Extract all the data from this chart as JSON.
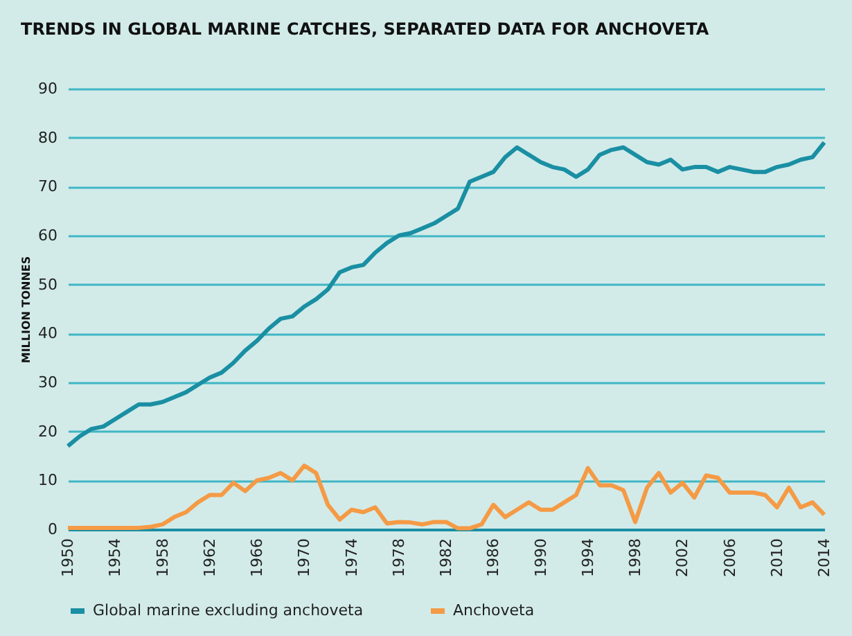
{
  "chart_data": {
    "type": "line",
    "title": "TRENDS IN GLOBAL MARINE CATCHES, SEPARATED DATA FOR ANCHOVETA",
    "ylabel": "MILLION TONNES",
    "x": [
      1950,
      1951,
      1952,
      1953,
      1954,
      1955,
      1956,
      1957,
      1958,
      1959,
      1960,
      1961,
      1962,
      1963,
      1964,
      1965,
      1966,
      1967,
      1968,
      1969,
      1970,
      1971,
      1972,
      1973,
      1974,
      1975,
      1976,
      1977,
      1978,
      1979,
      1980,
      1981,
      1982,
      1983,
      1984,
      1985,
      1986,
      1987,
      1988,
      1989,
      1990,
      1991,
      1992,
      1993,
      1994,
      1995,
      1996,
      1997,
      1998,
      1999,
      2000,
      2001,
      2002,
      2003,
      2004,
      2005,
      2006,
      2007,
      2008,
      2009,
      2010,
      2011,
      2012,
      2013,
      2014
    ],
    "series": [
      {
        "name": "Global marine excluding anchoveta",
        "color": "#1a8fa3",
        "values": [
          17,
          19,
          20.5,
          21,
          22.5,
          24,
          25.5,
          25.5,
          26,
          27,
          28,
          29.5,
          31,
          32,
          34,
          36.5,
          38.5,
          41,
          43,
          43.5,
          45.5,
          47,
          49,
          52.5,
          53.5,
          54,
          56.5,
          58.5,
          60,
          60.5,
          61.5,
          62.5,
          64,
          65.5,
          71,
          72,
          73,
          76,
          78,
          76.5,
          75,
          74,
          73.5,
          72,
          73.5,
          76.5,
          77.5,
          78,
          76.5,
          75,
          74.5,
          75.5,
          73.5,
          74,
          74,
          73,
          74,
          73.5,
          73,
          73,
          74,
          74.5,
          75.5,
          76,
          79
        ]
      },
      {
        "name": "Anchoveta",
        "color": "#f59a45",
        "values": [
          0.3,
          0.3,
          0.3,
          0.3,
          0.3,
          0.3,
          0.3,
          0.5,
          1,
          2.5,
          3.5,
          5.5,
          7,
          7,
          9.5,
          7.8,
          10,
          10.5,
          11.5,
          10,
          13,
          11.5,
          5,
          2,
          4,
          3.5,
          4.5,
          1.2,
          1.5,
          1.4,
          1,
          1.5,
          1.5,
          0.2,
          0.2,
          1,
          5,
          2.5,
          4,
          5.5,
          4,
          4,
          5.5,
          7,
          12.5,
          9,
          9,
          8,
          1.5,
          8.5,
          11.5,
          7.5,
          9.5,
          6.5,
          11,
          10.5,
          7.5,
          7.5,
          7.5,
          7,
          4.5,
          8.5,
          4.5,
          5.5,
          3
        ]
      }
    ],
    "xlim": [
      1950,
      2014
    ],
    "xticks": [
      1950,
      1954,
      1958,
      1962,
      1966,
      1970,
      1974,
      1978,
      1982,
      1986,
      1990,
      1994,
      1998,
      2002,
      2006,
      2010,
      2014
    ],
    "ylim": [
      0,
      90
    ],
    "yticks": [
      0,
      10,
      20,
      30,
      40,
      50,
      60,
      70,
      80,
      90
    ],
    "grid": "y",
    "legend": "bottom",
    "marker": "none",
    "line_style": "solid"
  }
}
